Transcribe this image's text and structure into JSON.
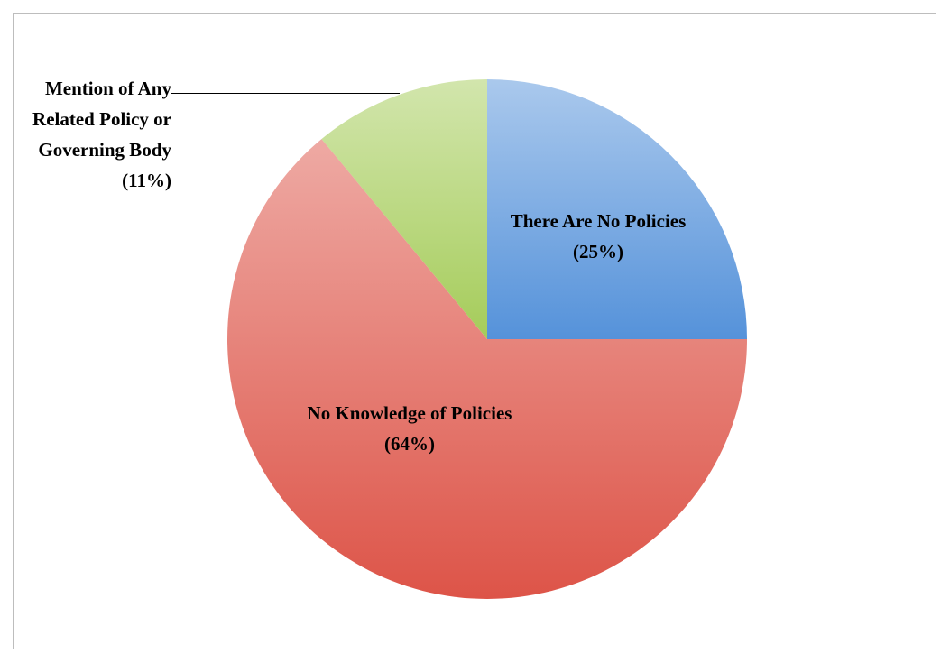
{
  "chart_data": {
    "type": "pie",
    "categories": [
      "There Are No Policies",
      "No Knowledge of Policies",
      "Mention of Any Related Policy or Governing Body"
    ],
    "values": [
      25,
      64,
      11
    ],
    "value_labels": [
      "(25%)",
      "(64%)",
      "(11%)"
    ],
    "colors": [
      "#5592da",
      "#dd5448",
      "#a5cc5a"
    ]
  }
}
